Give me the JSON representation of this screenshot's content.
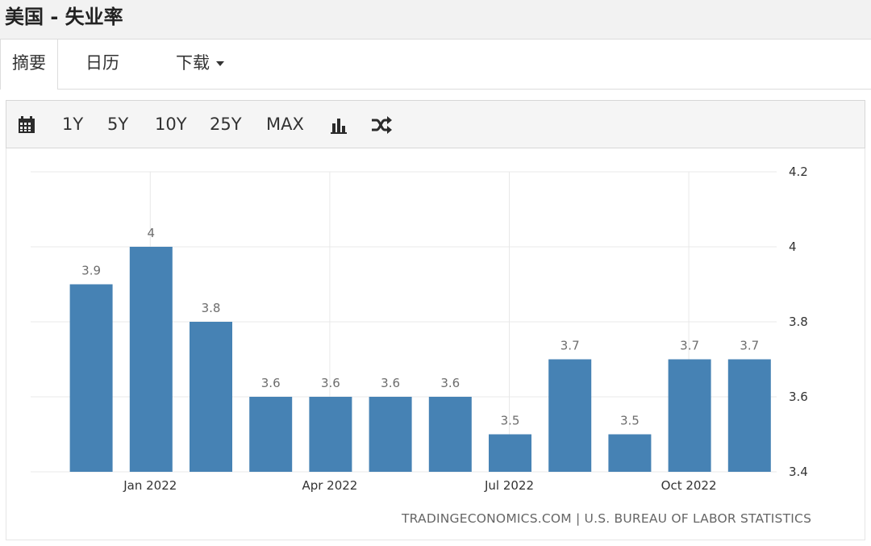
{
  "header": {
    "title": "美国 - 失业率"
  },
  "tabs": [
    {
      "label": "摘要",
      "active": true
    },
    {
      "label": "日历",
      "active": false
    },
    {
      "label": "下载",
      "active": false,
      "has_dropdown": true
    }
  ],
  "toolbar": {
    "calendar_icon": "calendar-icon",
    "ranges": [
      "1Y",
      "5Y",
      "10Y",
      "25Y",
      "MAX"
    ],
    "chart_type_icon": "bar-chart-icon",
    "compare_icon": "shuffle-icon"
  },
  "chart_data": {
    "type": "bar",
    "x": [
      "2021-12",
      "2022-01",
      "2022-02",
      "2022-03",
      "2022-04",
      "2022-05",
      "2022-06",
      "2022-07",
      "2022-08",
      "2022-09",
      "2022-10",
      "2022-11"
    ],
    "values": [
      3.9,
      4,
      3.8,
      3.6,
      3.6,
      3.6,
      3.6,
      3.5,
      3.7,
      3.5,
      3.7,
      3.7
    ],
    "value_labels": [
      "3.9",
      "4",
      "3.8",
      "3.6",
      "3.6",
      "3.6",
      "3.6",
      "3.5",
      "3.7",
      "3.5",
      "3.7",
      "3.7"
    ],
    "x_tick_labels": [
      {
        "x": "2022-01",
        "label": "Jan 2022"
      },
      {
        "x": "2022-04",
        "label": "Apr 2022"
      },
      {
        "x": "2022-07",
        "label": "Jul 2022"
      },
      {
        "x": "2022-10",
        "label": "Oct 2022"
      }
    ],
    "y_ticks": [
      "4.2",
      "4",
      "3.8",
      "3.6",
      "3.4"
    ],
    "ylim": [
      3.4,
      4.2
    ],
    "y_axis_side": "right",
    "grid": true,
    "bar_color": "#4682b4",
    "grid_color": "#e8e8e8",
    "source": "TRADINGECONOMICS.COM | U.S. BUREAU OF LABOR STATISTICS"
  }
}
